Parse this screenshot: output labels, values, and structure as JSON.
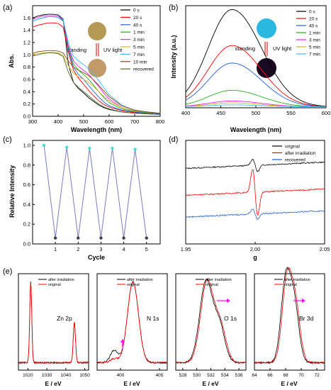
{
  "panels": {
    "a": {
      "label": "(a)",
      "ylabel": "Abs.",
      "xlabel": "Wavelength (nm)",
      "standing": "standing",
      "uv": "UV light"
    },
    "b": {
      "label": "(b)",
      "ylabel": "Intensity (a.u.)",
      "xlabel": "Wavelength (nm)",
      "standing": "standing",
      "uv": "UV light"
    },
    "c": {
      "label": "(c)",
      "ylabel": "Relative Intensity",
      "xlabel": "Cycle"
    },
    "d": {
      "label": "(d)",
      "xlabel": "g"
    },
    "e": {
      "label": "(e)",
      "sub_titles": [
        "Zn 2p",
        "N 1s",
        "O 1s",
        "Br 3d"
      ],
      "xlabel": "E / eV",
      "legend": [
        "after irradiation",
        "original"
      ]
    }
  },
  "colors": {
    "s0": "#000000",
    "s20": "#ff0000",
    "s40": "#1f5fd8",
    "m1": "#1fb01f",
    "m3": "#ee22ee",
    "m5": "#d2b41a",
    "m7": "#3fb6ff",
    "m10": "#8b4513",
    "recovered": "#556b2f",
    "cycle_high": "#40e0d0",
    "cycle_low": "#404040",
    "cycle_line": "#7a7ac8",
    "arrow": "#ff00ff",
    "photo_a1": "#b59a55",
    "photo_a2": "#c29a6a",
    "photo_b1": "#2ab8e0",
    "photo_b2": "#1a0b22"
  },
  "chart_data": [
    {
      "type": "line",
      "panel": "a",
      "xlim": [
        300,
        800
      ],
      "ylim": [
        0,
        1.8
      ],
      "xticks": [
        300,
        400,
        500,
        600,
        700,
        800
      ],
      "yticks": [
        0.0,
        0.2,
        0.4,
        0.6,
        0.8,
        1.0,
        1.2,
        1.4,
        1.6
      ],
      "x": [
        300,
        320,
        340,
        360,
        380,
        400,
        420,
        440,
        460,
        480,
        500,
        520,
        540,
        560,
        580,
        600,
        650,
        700,
        750,
        800
      ],
      "series": [
        {
          "name": "0 s",
          "color_key": "s0",
          "values": [
            1.6,
            1.63,
            1.65,
            1.66,
            1.66,
            1.65,
            1.58,
            0.85,
            0.55,
            0.45,
            0.38,
            0.3,
            0.24,
            0.18,
            0.14,
            0.11,
            0.07,
            0.05,
            0.04,
            0.03
          ]
        },
        {
          "name": "20 s",
          "color_key": "s20",
          "values": [
            1.45,
            1.48,
            1.5,
            1.52,
            1.52,
            1.51,
            1.45,
            1.05,
            0.75,
            0.62,
            0.52,
            0.42,
            0.33,
            0.25,
            0.19,
            0.15,
            0.09,
            0.06,
            0.05,
            0.04
          ]
        },
        {
          "name": "40 s",
          "color_key": "s40",
          "values": [
            1.55,
            1.58,
            1.6,
            1.62,
            1.62,
            1.61,
            1.55,
            1.08,
            0.8,
            0.68,
            0.6,
            0.5,
            0.4,
            0.31,
            0.23,
            0.17,
            0.1,
            0.07,
            0.05,
            0.04
          ]
        },
        {
          "name": "1 min",
          "color_key": "m1",
          "values": [
            1.55,
            1.58,
            1.6,
            1.62,
            1.62,
            1.61,
            1.56,
            1.12,
            0.85,
            0.75,
            0.68,
            0.6,
            0.5,
            0.4,
            0.3,
            0.22,
            0.12,
            0.08,
            0.06,
            0.05
          ]
        },
        {
          "name": "3 min",
          "color_key": "m3",
          "values": [
            1.58,
            1.61,
            1.63,
            1.64,
            1.64,
            1.63,
            1.57,
            1.15,
            0.9,
            0.81,
            0.75,
            0.68,
            0.58,
            0.48,
            0.37,
            0.28,
            0.14,
            0.09,
            0.07,
            0.05
          ]
        },
        {
          "name": "5 min",
          "color_key": "m5",
          "values": [
            1.0,
            1.02,
            1.03,
            1.04,
            1.04,
            1.03,
            0.99,
            0.82,
            0.7,
            0.64,
            0.6,
            0.55,
            0.48,
            0.4,
            0.32,
            0.25,
            0.14,
            0.09,
            0.07,
            0.05
          ]
        },
        {
          "name": "7 min",
          "color_key": "m7",
          "values": [
            1.55,
            1.58,
            1.6,
            1.62,
            1.62,
            1.61,
            1.57,
            1.2,
            0.98,
            0.9,
            0.84,
            0.77,
            0.68,
            0.58,
            0.46,
            0.35,
            0.18,
            0.1,
            0.07,
            0.05
          ]
        },
        {
          "name": "10 min",
          "color_key": "m10",
          "values": [
            1.02,
            1.05,
            1.06,
            1.07,
            1.07,
            1.06,
            1.03,
            0.9,
            0.8,
            0.75,
            0.71,
            0.66,
            0.59,
            0.5,
            0.41,
            0.32,
            0.17,
            0.1,
            0.07,
            0.05
          ]
        },
        {
          "name": "recovered",
          "color_key": "recovered",
          "values": [
            0.98,
            1.0,
            1.02,
            1.03,
            1.03,
            1.02,
            0.97,
            0.72,
            0.55,
            0.47,
            0.4,
            0.33,
            0.26,
            0.2,
            0.15,
            0.12,
            0.07,
            0.05,
            0.04,
            0.03
          ]
        }
      ]
    },
    {
      "type": "line",
      "panel": "b",
      "xlim": [
        400,
        600
      ],
      "ylim": [
        0,
        1.05
      ],
      "xticks": [
        400,
        450,
        500,
        550,
        600
      ],
      "peak_x": 466,
      "series": [
        {
          "name": "0 s",
          "color_key": "s0",
          "peak": 1.0
        },
        {
          "name": "20 s",
          "color_key": "s20",
          "peak": 0.63
        },
        {
          "name": "40 s",
          "color_key": "s40",
          "peak": 0.45
        },
        {
          "name": "1 min",
          "color_key": "m1",
          "peak": 0.17
        },
        {
          "name": "3 min",
          "color_key": "m3",
          "peak": 0.06
        },
        {
          "name": "5 min",
          "color_key": "m5",
          "peak": 0.04
        },
        {
          "name": "7 min",
          "color_key": "m7",
          "peak": 0.02
        }
      ]
    },
    {
      "type": "line",
      "panel": "c",
      "xlim": [
        0,
        5.6
      ],
      "ylim": [
        0,
        1.05
      ],
      "yticks": [
        0.0,
        0.2,
        0.4,
        0.6,
        0.8,
        1.0
      ],
      "xticks": [
        1,
        2,
        3,
        4,
        5
      ],
      "x": [
        0.5,
        1.0,
        1.5,
        2.0,
        2.5,
        3.0,
        3.5,
        4.0,
        4.5,
        5.0
      ],
      "values": [
        1.0,
        0.06,
        0.98,
        0.06,
        0.97,
        0.06,
        0.97,
        0.06,
        0.96,
        0.06
      ]
    },
    {
      "type": "line",
      "panel": "d",
      "xlim": [
        1.95,
        2.05
      ],
      "ylim": [
        0,
        1
      ],
      "xticks": [
        1.95,
        2.0,
        2.05
      ],
      "series": [
        {
          "name": "original",
          "color_key": "s0",
          "baseline": 0.73,
          "amp": 0.06
        },
        {
          "name": "after irradiation",
          "color_key": "s20",
          "baseline": 0.47,
          "amp": 0.22
        },
        {
          "name": "recovered",
          "color_key": "s40",
          "baseline": 0.26,
          "amp": 0.05
        }
      ]
    },
    {
      "type": "line",
      "panel": "e",
      "subplots": [
        {
          "title": "Zn 2p",
          "xlim": [
            1015,
            1052
          ],
          "xticks": [
            1020,
            1030,
            1040,
            1050
          ],
          "peaks": [
            [
              1021.5,
              1.0,
              0.9
            ],
            [
              1044.5,
              0.5,
              1.0
            ]
          ]
        },
        {
          "title": "N 1s",
          "xlim": [
            397,
            406
          ],
          "xticks": [
            400,
            405
          ],
          "peaks": [
            [
              401.6,
              1.0,
              0.7
            ],
            [
              399.2,
              0.15,
              0.5
            ]
          ]
        },
        {
          "title": "O 1s",
          "xlim": [
            527,
            537
          ],
          "xticks": [
            528,
            530,
            532,
            534,
            536
          ],
          "peaks": [
            [
              531.3,
              1.0,
              0.9
            ],
            [
              533.2,
              0.45,
              0.8
            ]
          ]
        },
        {
          "title": "Br 3d",
          "xlim": [
            64,
            73
          ],
          "xticks": [
            64,
            66,
            68,
            70,
            72
          ],
          "peaks": [
            [
              68.0,
              1.0,
              0.6
            ],
            [
              69.1,
              0.7,
              0.6
            ]
          ]
        }
      ]
    }
  ]
}
